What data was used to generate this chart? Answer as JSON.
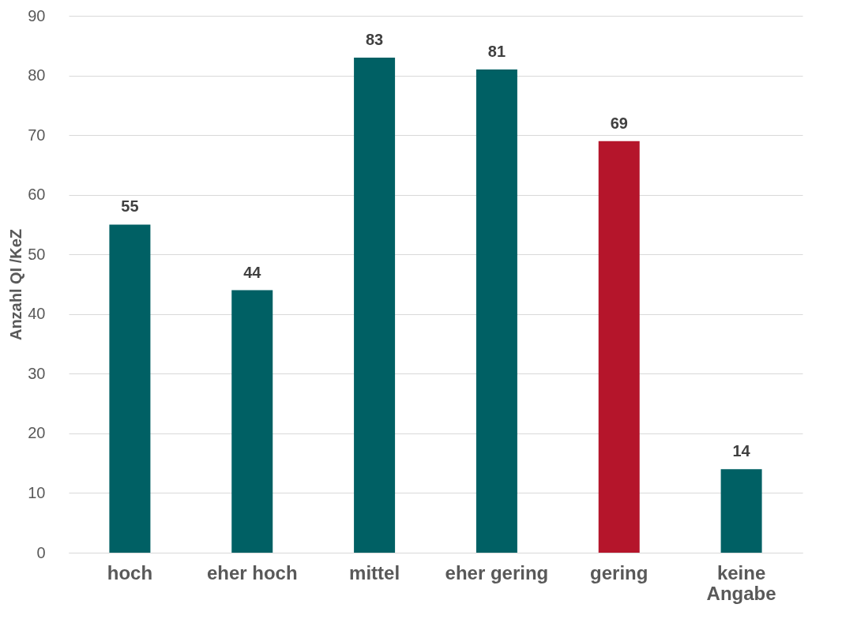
{
  "chart_data": {
    "type": "bar",
    "ylabel": "Anzahl QI /KeZ",
    "categories": [
      "hoch",
      "eher hoch",
      "mittel",
      "eher gering",
      "gering",
      "keine Angabe"
    ],
    "values": [
      55,
      44,
      83,
      81,
      69,
      14
    ],
    "colors": [
      "#006064",
      "#006064",
      "#006064",
      "#006064",
      "#b5152b",
      "#006064"
    ],
    "ylim": [
      0,
      90
    ],
    "yticks": [
      0,
      10,
      20,
      30,
      40,
      50,
      60,
      70,
      80,
      90
    ],
    "grid": "y",
    "data_labels": true
  }
}
